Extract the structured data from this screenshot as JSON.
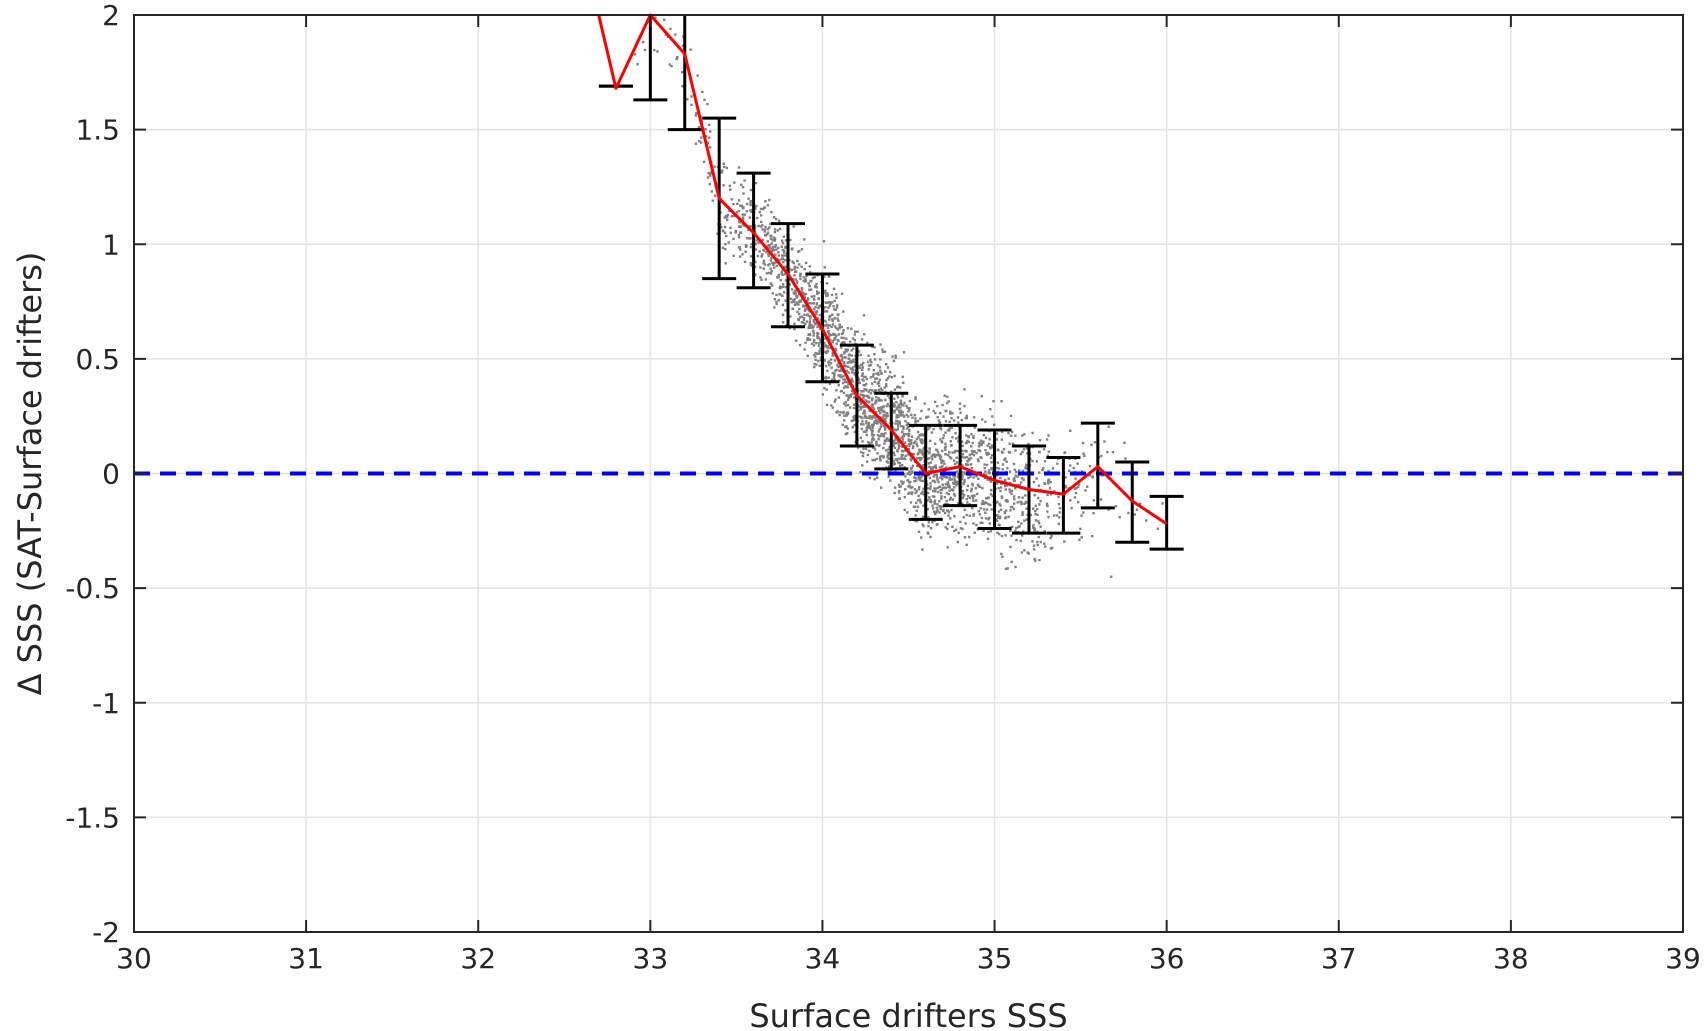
{
  "chart_data": {
    "type": "scatter",
    "title": "",
    "xlabel": "Surface drifters SSS",
    "ylabel": "Δ SSS (SAT-Surface drifters)",
    "xlim": [
      30,
      39
    ],
    "ylim": [
      -2,
      2
    ],
    "x_ticks": [
      "30",
      "31",
      "32",
      "33",
      "34",
      "35",
      "36",
      "37",
      "38",
      "39"
    ],
    "y_ticks": [
      "-2",
      "-1.5",
      "-1",
      "-0.5",
      "0",
      "0.5",
      "1",
      "1.5",
      "2"
    ],
    "grid": true,
    "reference_line": {
      "y": 0,
      "style": "dashed",
      "color": "#0000ff"
    },
    "scatter_color": "#808080",
    "scatter_cloud": {
      "description": "dense cloud of gray points",
      "x_range": [
        32.9,
        36.0
      ],
      "y_range": [
        -0.8,
        1.9
      ]
    },
    "mean_line": {
      "color": "#ff0000",
      "x": [
        32.7,
        32.8,
        33.0,
        33.2,
        33.4,
        33.6,
        33.8,
        34.0,
        34.2,
        34.4,
        34.6,
        34.8,
        35.0,
        35.2,
        35.4,
        35.6,
        35.8,
        36.0
      ],
      "y": [
        2.0,
        1.68,
        2.0,
        1.83,
        1.2,
        1.05,
        0.87,
        0.63,
        0.34,
        0.19,
        0.0,
        0.03,
        -0.03,
        -0.07,
        -0.09,
        0.03,
        -0.12,
        -0.22
      ]
    },
    "error_bars": {
      "color": "#000000",
      "x": [
        32.8,
        33.0,
        33.2,
        33.4,
        33.6,
        33.8,
        34.0,
        34.2,
        34.4,
        34.6,
        34.8,
        35.0,
        35.2,
        35.4,
        35.6,
        35.8,
        36.0
      ],
      "low": [
        1.69,
        1.63,
        1.5,
        0.85,
        0.81,
        0.64,
        0.4,
        0.12,
        0.02,
        -0.2,
        -0.14,
        -0.24,
        -0.26,
        -0.26,
        -0.15,
        -0.3,
        -0.33
      ],
      "high": [
        1.69,
        2.0,
        2.0,
        1.55,
        1.31,
        1.09,
        0.87,
        0.56,
        0.35,
        0.21,
        0.21,
        0.19,
        0.12,
        0.07,
        0.22,
        0.05,
        -0.1
      ]
    }
  }
}
